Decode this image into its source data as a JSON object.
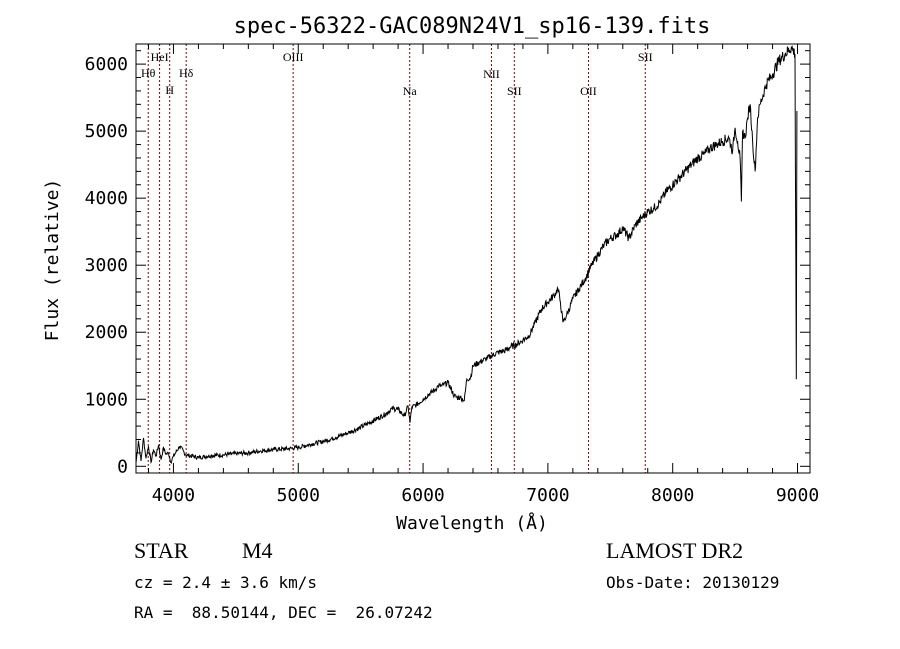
{
  "chart_data": {
    "type": "line",
    "title": "spec-56322-GAC089N24V1_sp16-139.fits",
    "xlabel": "Wavelength (Å)",
    "ylabel": "Flux (relative)",
    "xlim": [
      3700,
      9100
    ],
    "ylim": [
      -100,
      6300
    ],
    "xticks": [
      4000,
      5000,
      6000,
      7000,
      8000,
      9000
    ],
    "yticks": [
      0,
      1000,
      2000,
      3000,
      4000,
      5000,
      6000
    ],
    "grid": false,
    "line_color": "#000000",
    "series": [
      {
        "x": [
          3700,
          3720,
          3740,
          3760,
          3780,
          3800,
          3820,
          3840,
          3860,
          3880,
          3900,
          3920,
          3940,
          3960,
          3980,
          4000,
          4050,
          4100,
          4200,
          4300,
          4400,
          4500,
          4600,
          4700,
          4800,
          4900,
          5000,
          5100,
          5200,
          5300,
          5400,
          5500,
          5600,
          5700,
          5750,
          5800,
          5850,
          5880,
          5895,
          5910,
          5950,
          6000,
          6050,
          6100,
          6120,
          6150,
          6200,
          6250,
          6280,
          6300,
          6330,
          6350,
          6380,
          6400,
          6450,
          6500,
          6550,
          6600,
          6650,
          6700,
          6750,
          6800,
          6850,
          6900,
          6950,
          7000,
          7050,
          7080,
          7100,
          7120,
          7150,
          7200,
          7250,
          7300,
          7350,
          7400,
          7450,
          7500,
          7550,
          7600,
          7650,
          7700,
          7750,
          7800,
          7850,
          7900,
          7950,
          8000,
          8050,
          8100,
          8150,
          8200,
          8250,
          8300,
          8350,
          8400,
          8450,
          8480,
          8500,
          8520,
          8540,
          8550,
          8560,
          8580,
          8600,
          8620,
          8640,
          8660,
          8680,
          8700,
          8750,
          8800,
          8850,
          8900,
          8950,
          8980,
          8990,
          8995
        ],
        "y": [
          50,
          380,
          80,
          420,
          120,
          300,
          60,
          250,
          150,
          320,
          100,
          280,
          180,
          200,
          60,
          150,
          300,
          170,
          130,
          160,
          170,
          190,
          200,
          230,
          250,
          260,
          280,
          330,
          370,
          430,
          500,
          580,
          680,
          780,
          860,
          850,
          750,
          900,
          650,
          880,
          920,
          1000,
          1080,
          1150,
          1200,
          1200,
          1250,
          1050,
          1020,
          1030,
          980,
          1300,
          1320,
          1500,
          1550,
          1600,
          1650,
          1700,
          1720,
          1780,
          1820,
          1880,
          1950,
          2150,
          2350,
          2450,
          2550,
          2650,
          2450,
          2150,
          2250,
          2500,
          2650,
          2800,
          3000,
          3150,
          3300,
          3400,
          3450,
          3550,
          3400,
          3600,
          3700,
          3800,
          3850,
          3950,
          4100,
          4200,
          4300,
          4400,
          4500,
          4600,
          4650,
          4750,
          4800,
          4850,
          4900,
          4700,
          5050,
          4850,
          4600,
          3950,
          5000,
          4900,
          5200,
          5400,
          4850,
          4400,
          5200,
          5400,
          5700,
          5850,
          6050,
          6150,
          6250,
          6150,
          1300,
          5300
        ]
      }
    ],
    "line_markers": [
      {
        "label": "Hθ",
        "x": 3798
      },
      {
        "label": "HeI",
        "x": 3889
      },
      {
        "label": "H",
        "x": 3970
      },
      {
        "label": "Hδ",
        "x": 4102
      },
      {
        "label": "OIII",
        "x": 4959
      },
      {
        "label": "Na",
        "x": 5893
      },
      {
        "label": "NII",
        "x": 6548
      },
      {
        "label": "SII",
        "x": 6731
      },
      {
        "label": "OII",
        "x": 7325
      },
      {
        "label": "SII",
        "x": 7780
      }
    ],
    "marker_color": "#8b0000"
  },
  "info": {
    "class_label": "STAR",
    "subclass": "M4",
    "cz_text": "cz = 2.4 ± 3.6 km/s",
    "radec_text": "RA =  88.50144, DEC =  26.07242",
    "survey": "LAMOST DR2",
    "obs_date": "Obs-Date: 20130129"
  }
}
